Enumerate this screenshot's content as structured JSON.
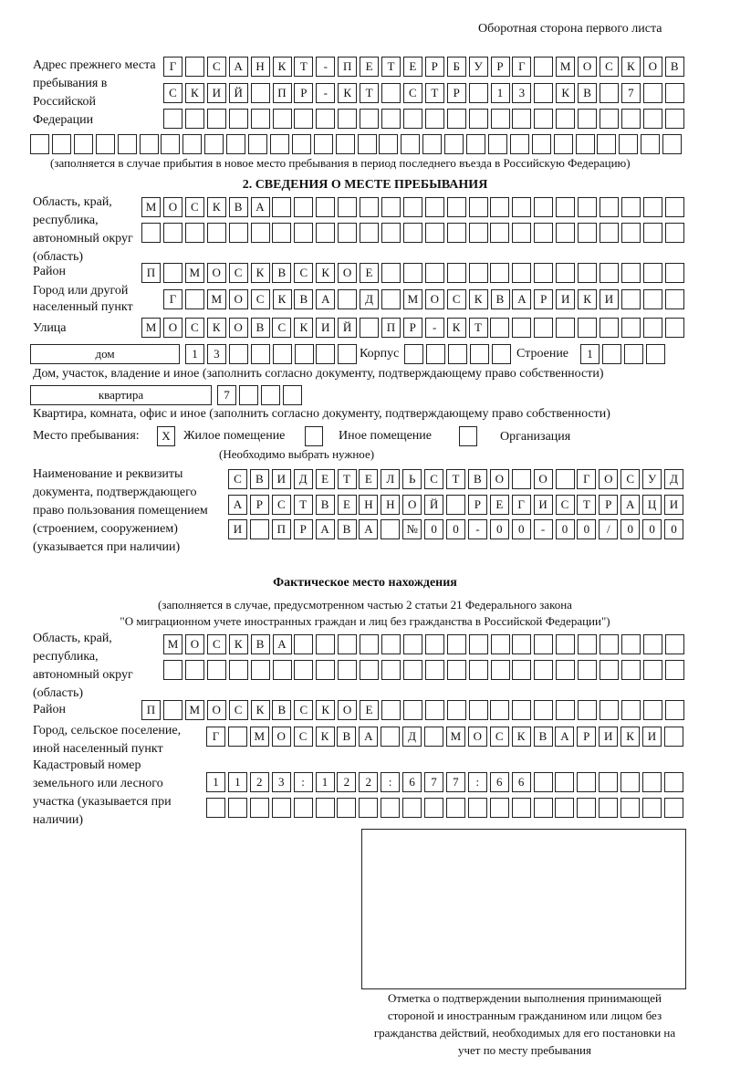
{
  "header": "Оборотная сторона первого листа",
  "prev_address": {
    "label": "Адрес прежнего места пребывания в Российской Федерации",
    "rows": [
      [
        "Г",
        "",
        "С",
        "А",
        "Н",
        "К",
        "Т",
        "-",
        "П",
        "Е",
        "Т",
        "Е",
        "Р",
        "Б",
        "У",
        "Р",
        "Г",
        "",
        "М",
        "О",
        "С",
        "К",
        "О",
        "В"
      ],
      [
        "С",
        "К",
        "И",
        "Й",
        "",
        "П",
        "Р",
        "-",
        "К",
        "Т",
        "",
        "С",
        "Т",
        "Р",
        "",
        "1",
        "3",
        "",
        "К",
        "В",
        "",
        "7",
        "",
        ""
      ],
      [
        "",
        "",
        "",
        "",
        "",
        "",
        "",
        "",
        "",
        "",
        "",
        "",
        "",
        "",
        "",
        "",
        "",
        "",
        "",
        "",
        "",
        "",
        "",
        ""
      ],
      [
        "",
        "",
        "",
        "",
        "",
        "",
        "",
        "",
        "",
        "",
        "",
        "",
        "",
        "",
        "",
        "",
        "",
        "",
        "",
        "",
        "",
        "",
        "",
        "",
        "",
        "",
        "",
        "",
        "",
        ""
      ]
    ],
    "note": "(заполняется в случае прибытия в новое место пребывания в период последнего въезда в Российскую Федерацию)"
  },
  "section2": {
    "title": "2. СВЕДЕНИЯ О МЕСТЕ ПРЕБЫВАНИЯ",
    "region_label": "Область, край, республика, автономный округ (область)",
    "region_rows": [
      [
        "М",
        "О",
        "С",
        "К",
        "В",
        "А",
        "",
        "",
        "",
        "",
        "",
        "",
        "",
        "",
        "",
        "",
        "",
        "",
        "",
        "",
        "",
        "",
        "",
        "",
        ""
      ],
      [
        "",
        "",
        "",
        "",
        "",
        "",
        "",
        "",
        "",
        "",
        "",
        "",
        "",
        "",
        "",
        "",
        "",
        "",
        "",
        "",
        "",
        "",
        "",
        "",
        ""
      ]
    ],
    "district_label": "Район",
    "district": [
      "П",
      "",
      "М",
      "О",
      "С",
      "К",
      "В",
      "С",
      "К",
      "О",
      "Е",
      "",
      "",
      "",
      "",
      "",
      "",
      "",
      "",
      "",
      "",
      "",
      "",
      "",
      ""
    ],
    "city_label": "Город или другой населенный пункт",
    "city": [
      "Г",
      "",
      "М",
      "О",
      "С",
      "К",
      "В",
      "А",
      "",
      "Д",
      "",
      "М",
      "О",
      "С",
      "К",
      "В",
      "А",
      "Р",
      "И",
      "К",
      "И",
      "",
      "",
      ""
    ],
    "street_label": "Улица",
    "street": [
      "М",
      "О",
      "С",
      "К",
      "О",
      "В",
      "С",
      "К",
      "И",
      "Й",
      "",
      "П",
      "Р",
      "-",
      "К",
      "Т",
      "",
      "",
      "",
      "",
      "",
      "",
      "",
      "",
      ""
    ],
    "house_type": "дом",
    "house": [
      "1",
      "3",
      "",
      "",
      "",
      "",
      "",
      ""
    ],
    "korpus_label": "Корпус",
    "korpus": [
      "",
      "",
      "",
      "",
      ""
    ],
    "stroenie_label": "Строение",
    "stroenie": [
      "1",
      "",
      "",
      ""
    ],
    "house_note": "Дом, участок, владение и иное (заполнить согласно документу, подтверждающему право собственности)",
    "flat_type": "квартира",
    "flat": [
      "7",
      "",
      "",
      ""
    ],
    "flat_note": "Квартира, комната, офис и иное (заполнить согласно документу, подтверждающему право собственности)",
    "stay_label": "Место пребывания:",
    "stay_options": [
      {
        "label": "Жилое помещение",
        "mark": "X"
      },
      {
        "label": "Иное помещение",
        "mark": ""
      },
      {
        "label": "Организация",
        "mark": ""
      }
    ],
    "stay_note": "(Необходимо выбрать нужное)",
    "doc_label": "Наименование и реквизиты документа, подтверждающего право пользования помещением (строением, сооружением) (указывается при наличии)",
    "doc_rows": [
      [
        "С",
        "В",
        "И",
        "Д",
        "Е",
        "Т",
        "Е",
        "Л",
        "Ь",
        "С",
        "Т",
        "В",
        "О",
        "",
        "О",
        "",
        "Г",
        "О",
        "С",
        "У",
        "Д"
      ],
      [
        "А",
        "Р",
        "С",
        "Т",
        "В",
        "Е",
        "Н",
        "Н",
        "О",
        "Й",
        "",
        "Р",
        "Е",
        "Г",
        "И",
        "С",
        "Т",
        "Р",
        "А",
        "Ц",
        "И"
      ],
      [
        "И",
        "",
        "П",
        "Р",
        "А",
        "В",
        "А",
        "",
        "№",
        "0",
        "0",
        "-",
        "0",
        "0",
        "-",
        "0",
        "0",
        "/",
        "0",
        "0",
        "0"
      ]
    ]
  },
  "actual": {
    "title": "Фактическое место нахождения",
    "note1": "(заполняется в случае, предусмотренном частью 2 статьи 21 Федерального закона",
    "note2": "\"О миграционном учете иностранных граждан и лиц без гражданства в Российской Федерации\")",
    "region_label": "Область, край, республика, автономный округ (область)",
    "region_rows": [
      [
        "М",
        "О",
        "С",
        "К",
        "В",
        "А",
        "",
        "",
        "",
        "",
        "",
        "",
        "",
        "",
        "",
        "",
        "",
        "",
        "",
        "",
        "",
        "",
        "",
        ""
      ],
      [
        "",
        "",
        "",
        "",
        "",
        "",
        "",
        "",
        "",
        "",
        "",
        "",
        "",
        "",
        "",
        "",
        "",
        "",
        "",
        "",
        "",
        "",
        "",
        ""
      ]
    ],
    "district_label": "Район",
    "district": [
      "П",
      "",
      "М",
      "О",
      "С",
      "К",
      "В",
      "С",
      "К",
      "О",
      "Е",
      "",
      "",
      "",
      "",
      "",
      "",
      "",
      "",
      "",
      "",
      "",
      "",
      "",
      ""
    ],
    "city_label": "Город, сельское поселение, иной населенный пункт",
    "city": [
      "Г",
      "",
      "М",
      "О",
      "С",
      "К",
      "В",
      "А",
      "",
      "Д",
      "",
      "М",
      "О",
      "С",
      "К",
      "В",
      "А",
      "Р",
      "И",
      "К",
      "И",
      ""
    ],
    "cadastre_label": "Кадастровый номер земельного или лесного участка (указывается при наличии)",
    "cadastre_rows": [
      [
        "1",
        "1",
        "2",
        "3",
        ":",
        "1",
        "2",
        "2",
        ":",
        "6",
        "7",
        "7",
        ":",
        "6",
        "6",
        "",
        "",
        "",
        "",
        "",
        "",
        ""
      ],
      [
        "",
        "",
        "",
        "",
        "",
        "",
        "",
        "",
        "",
        "",
        "",
        "",
        "",
        "",
        "",
        "",
        "",
        "",
        "",
        "",
        "",
        ""
      ]
    ]
  },
  "stamp_caption": "Отметка о подтверждении выполнения принимающей стороной и иностранным гражданином или лицом без гражданства действий, необходимых для его постановки на учет по месту пребывания"
}
